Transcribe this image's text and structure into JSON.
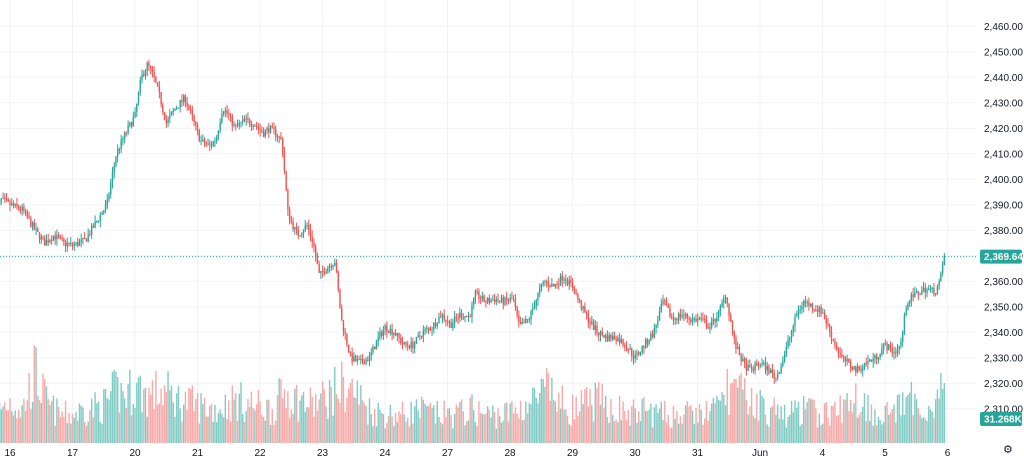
{
  "chart_data": {
    "type": "candlestick",
    "title": "",
    "ylim": [
      2305,
      2465
    ],
    "y_ticks": [
      2310,
      2320,
      2330,
      2340,
      2350,
      2360,
      2370,
      2380,
      2390,
      2400,
      2410,
      2420,
      2430,
      2440,
      2450,
      2460
    ],
    "y_tick_labels": [
      "2,310.00",
      "2,320.00",
      "2,330.00",
      "2,340.00",
      "2,350.00",
      "2,360.00",
      "2,370.00",
      "2,380.00",
      "2,390.00",
      "2,400.00",
      "2,410.00",
      "2,420.00",
      "2,430.00",
      "2,440.00",
      "2,450.00",
      "2,460.00"
    ],
    "x_labels": [
      {
        "label": "16",
        "t": 0.0
      },
      {
        "label": "17",
        "t": 1.0
      },
      {
        "label": "20",
        "t": 2.0
      },
      {
        "label": "21",
        "t": 3.0
      },
      {
        "label": "22",
        "t": 4.0
      },
      {
        "label": "23",
        "t": 5.0
      },
      {
        "label": "24",
        "t": 6.0
      },
      {
        "label": "27",
        "t": 7.0
      },
      {
        "label": "28",
        "t": 8.0
      },
      {
        "label": "29",
        "t": 9.0
      },
      {
        "label": "30",
        "t": 10.0
      },
      {
        "label": "31",
        "t": 11.0
      },
      {
        "label": "Jun",
        "t": 12.0
      },
      {
        "label": "4",
        "t": 13.0
      },
      {
        "label": "5",
        "t": 14.0
      },
      {
        "label": "6",
        "t": 15.0
      }
    ],
    "close_path": [
      [
        -0.25,
        2385
      ],
      [
        -0.15,
        2392
      ],
      [
        0.0,
        2390
      ],
      [
        0.2,
        2388
      ],
      [
        0.4,
        2380
      ],
      [
        0.55,
        2375
      ],
      [
        0.7,
        2378
      ],
      [
        0.85,
        2375
      ],
      [
        1.0,
        2374
      ],
      [
        1.2,
        2376
      ],
      [
        1.4,
        2384
      ],
      [
        1.55,
        2390
      ],
      [
        1.7,
        2410
      ],
      [
        1.85,
        2418
      ],
      [
        2.0,
        2425
      ],
      [
        2.1,
        2440
      ],
      [
        2.2,
        2445
      ],
      [
        2.3,
        2440
      ],
      [
        2.4,
        2432
      ],
      [
        2.5,
        2422
      ],
      [
        2.65,
        2428
      ],
      [
        2.8,
        2432
      ],
      [
        2.9,
        2425
      ],
      [
        3.05,
        2415
      ],
      [
        3.2,
        2413
      ],
      [
        3.3,
        2416
      ],
      [
        3.4,
        2428
      ],
      [
        3.5,
        2425
      ],
      [
        3.6,
        2420
      ],
      [
        3.75,
        2423
      ],
      [
        3.9,
        2422
      ],
      [
        4.05,
        2418
      ],
      [
        4.15,
        2420
      ],
      [
        4.25,
        2418
      ],
      [
        4.35,
        2415
      ],
      [
        4.45,
        2386
      ],
      [
        4.6,
        2378
      ],
      [
        4.75,
        2382
      ],
      [
        4.85,
        2375
      ],
      [
        4.95,
        2362
      ],
      [
        5.05,
        2365
      ],
      [
        5.2,
        2368
      ],
      [
        5.3,
        2345
      ],
      [
        5.45,
        2330
      ],
      [
        5.6,
        2328
      ],
      [
        5.75,
        2330
      ],
      [
        5.9,
        2338
      ],
      [
        6.0,
        2342
      ],
      [
        6.15,
        2340
      ],
      [
        6.3,
        2335
      ],
      [
        6.45,
        2335
      ],
      [
        6.6,
        2340
      ],
      [
        6.75,
        2342
      ],
      [
        6.9,
        2347
      ],
      [
        7.05,
        2343
      ],
      [
        7.2,
        2347
      ],
      [
        7.35,
        2346
      ],
      [
        7.45,
        2355
      ],
      [
        7.6,
        2352
      ],
      [
        7.75,
        2353
      ],
      [
        7.9,
        2352
      ],
      [
        8.05,
        2353
      ],
      [
        8.15,
        2342
      ],
      [
        8.3,
        2345
      ],
      [
        8.45,
        2355
      ],
      [
        8.55,
        2360
      ],
      [
        8.7,
        2358
      ],
      [
        8.85,
        2362
      ],
      [
        9.0,
        2358
      ],
      [
        9.1,
        2352
      ],
      [
        9.25,
        2345
      ],
      [
        9.4,
        2340
      ],
      [
        9.55,
        2338
      ],
      [
        9.7,
        2338
      ],
      [
        9.85,
        2335
      ],
      [
        10.0,
        2330
      ],
      [
        10.15,
        2335
      ],
      [
        10.3,
        2340
      ],
      [
        10.45,
        2352
      ],
      [
        10.6,
        2345
      ],
      [
        10.75,
        2347
      ],
      [
        10.9,
        2345
      ],
      [
        11.05,
        2345
      ],
      [
        11.2,
        2342
      ],
      [
        11.35,
        2348
      ],
      [
        11.45,
        2355
      ],
      [
        11.6,
        2335
      ],
      [
        11.75,
        2327
      ],
      [
        11.85,
        2325
      ],
      [
        12.0,
        2328
      ],
      [
        12.15,
        2325
      ],
      [
        12.25,
        2322
      ],
      [
        12.35,
        2328
      ],
      [
        12.5,
        2340
      ],
      [
        12.6,
        2348
      ],
      [
        12.7,
        2352
      ],
      [
        12.85,
        2350
      ],
      [
        13.0,
        2348
      ],
      [
        13.15,
        2338
      ],
      [
        13.3,
        2330
      ],
      [
        13.4,
        2328
      ],
      [
        13.55,
        2325
      ],
      [
        13.7,
        2328
      ],
      [
        13.85,
        2330
      ],
      [
        14.0,
        2335
      ],
      [
        14.15,
        2332
      ],
      [
        14.25,
        2335
      ],
      [
        14.35,
        2352
      ],
      [
        14.5,
        2355
      ],
      [
        14.65,
        2357
      ],
      [
        14.8,
        2356
      ],
      [
        14.88,
        2360
      ],
      [
        14.95,
        2370
      ]
    ],
    "volume_path": [
      [
        -0.25,
        0.3
      ],
      [
        0.0,
        0.45
      ],
      [
        0.2,
        0.35
      ],
      [
        0.4,
        0.75
      ],
      [
        0.6,
        0.4
      ],
      [
        0.8,
        0.3
      ],
      [
        1.0,
        0.3
      ],
      [
        1.2,
        0.35
      ],
      [
        1.5,
        0.4
      ],
      [
        1.7,
        0.55
      ],
      [
        1.85,
        0.5
      ],
      [
        2.0,
        0.6
      ],
      [
        2.2,
        0.5
      ],
      [
        2.45,
        0.55
      ],
      [
        2.7,
        0.45
      ],
      [
        3.0,
        0.4
      ],
      [
        3.3,
        0.35
      ],
      [
        3.6,
        0.45
      ],
      [
        3.9,
        0.4
      ],
      [
        4.2,
        0.35
      ],
      [
        4.4,
        0.55
      ],
      [
        4.6,
        0.45
      ],
      [
        4.85,
        0.4
      ],
      [
        5.1,
        0.5
      ],
      [
        5.3,
        0.6
      ],
      [
        5.5,
        0.55
      ],
      [
        5.75,
        0.35
      ],
      [
        6.0,
        0.3
      ],
      [
        6.3,
        0.3
      ],
      [
        6.55,
        0.35
      ],
      [
        6.8,
        0.3
      ],
      [
        7.1,
        0.3
      ],
      [
        7.4,
        0.35
      ],
      [
        7.6,
        0.3
      ],
      [
        7.9,
        0.3
      ],
      [
        8.1,
        0.35
      ],
      [
        8.4,
        0.45
      ],
      [
        8.6,
        0.55
      ],
      [
        8.85,
        0.4
      ],
      [
        9.05,
        0.35
      ],
      [
        9.35,
        0.45
      ],
      [
        9.6,
        0.4
      ],
      [
        9.9,
        0.3
      ],
      [
        10.15,
        0.35
      ],
      [
        10.4,
        0.3
      ],
      [
        10.7,
        0.3
      ],
      [
        11.0,
        0.3
      ],
      [
        11.3,
        0.35
      ],
      [
        11.5,
        0.6
      ],
      [
        11.7,
        0.5
      ],
      [
        11.9,
        0.45
      ],
      [
        12.1,
        0.35
      ],
      [
        12.4,
        0.3
      ],
      [
        12.7,
        0.35
      ],
      [
        13.0,
        0.3
      ],
      [
        13.3,
        0.35
      ],
      [
        13.5,
        0.5
      ],
      [
        13.7,
        0.4
      ],
      [
        13.9,
        0.3
      ],
      [
        14.2,
        0.35
      ],
      [
        14.45,
        0.45
      ],
      [
        14.7,
        0.35
      ],
      [
        14.95,
        0.6
      ]
    ],
    "current_price": 2369.64,
    "current_price_label": "2,369.64",
    "volume_label": "31.268K",
    "colors": {
      "up": "#26a69a",
      "down": "#ef5350",
      "up_volume": "#80cbc4",
      "down_volume": "#f7a9a7",
      "grid": "#f0f3fa",
      "price_line": "#26a69a",
      "text": "#131722"
    },
    "grid": true,
    "axis_position": "right"
  },
  "icons": {
    "settings": "gear-icon",
    "settings_glyph": "⚙"
  }
}
